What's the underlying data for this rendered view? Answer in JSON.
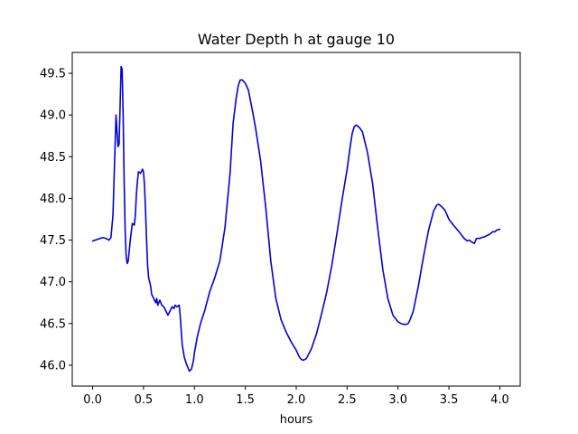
{
  "chart_data": {
    "type": "line",
    "title": "Water Depth h at gauge 10",
    "xlabel": "hours",
    "ylabel": "",
    "xlim": [
      -0.2,
      4.2
    ],
    "ylim": [
      45.75,
      49.75
    ],
    "xticks": [
      0.0,
      0.5,
      1.0,
      1.5,
      2.0,
      2.5,
      3.0,
      3.5,
      4.0
    ],
    "xtick_labels": [
      "0.0",
      "0.5",
      "1.0",
      "1.5",
      "2.0",
      "2.5",
      "3.0",
      "3.5",
      "4.0"
    ],
    "yticks": [
      46.0,
      46.5,
      47.0,
      47.5,
      48.0,
      48.5,
      49.0,
      49.5
    ],
    "ytick_labels": [
      "46.0",
      "46.5",
      "47.0",
      "47.5",
      "48.0",
      "48.5",
      "49.0",
      "49.5"
    ],
    "grid": false,
    "series": [
      {
        "color": "#0000dd",
        "x": [
          0.0,
          0.05,
          0.1,
          0.13,
          0.16,
          0.18,
          0.2,
          0.22,
          0.23,
          0.24,
          0.25,
          0.26,
          0.27,
          0.28,
          0.29,
          0.3,
          0.31,
          0.32,
          0.33,
          0.34,
          0.35,
          0.37,
          0.39,
          0.41,
          0.42,
          0.43,
          0.44,
          0.45,
          0.47,
          0.49,
          0.5,
          0.51,
          0.52,
          0.53,
          0.54,
          0.55,
          0.56,
          0.57,
          0.58,
          0.6,
          0.62,
          0.63,
          0.64,
          0.66,
          0.68,
          0.7,
          0.72,
          0.74,
          0.76,
          0.78,
          0.8,
          0.81,
          0.83,
          0.85,
          0.86,
          0.88,
          0.9,
          0.92,
          0.95,
          0.97,
          0.99,
          1.0,
          1.03,
          1.06,
          1.1,
          1.15,
          1.2,
          1.25,
          1.3,
          1.35,
          1.38,
          1.41,
          1.43,
          1.45,
          1.47,
          1.5,
          1.53,
          1.57,
          1.6,
          1.65,
          1.7,
          1.75,
          1.8,
          1.85,
          1.9,
          1.95,
          2.0,
          2.03,
          2.05,
          2.07,
          2.1,
          2.15,
          2.2,
          2.25,
          2.3,
          2.35,
          2.4,
          2.45,
          2.5,
          2.53,
          2.55,
          2.57,
          2.59,
          2.62,
          2.65,
          2.7,
          2.75,
          2.8,
          2.85,
          2.9,
          2.95,
          3.0,
          3.03,
          3.05,
          3.08,
          3.1,
          3.12,
          3.15,
          3.2,
          3.25,
          3.3,
          3.35,
          3.38,
          3.4,
          3.43,
          3.46,
          3.5,
          3.55,
          3.6,
          3.65,
          3.68,
          3.7,
          3.72,
          3.75,
          3.77,
          3.8,
          3.82,
          3.85,
          3.9,
          3.93,
          3.95,
          3.97,
          4.0
        ],
        "y": [
          47.49,
          47.51,
          47.53,
          47.52,
          47.5,
          47.53,
          47.8,
          48.6,
          49.0,
          48.8,
          48.62,
          48.65,
          49.1,
          49.58,
          49.55,
          49.0,
          48.2,
          47.6,
          47.3,
          47.22,
          47.25,
          47.5,
          47.7,
          47.68,
          47.8,
          48.05,
          48.2,
          48.32,
          48.3,
          48.35,
          48.32,
          48.15,
          47.85,
          47.5,
          47.2,
          47.05,
          47.0,
          46.95,
          46.85,
          46.8,
          46.75,
          46.8,
          46.72,
          46.78,
          46.72,
          46.7,
          46.65,
          46.6,
          46.65,
          46.7,
          46.68,
          46.72,
          46.7,
          46.72,
          46.6,
          46.25,
          46.1,
          46.02,
          45.93,
          45.95,
          46.05,
          46.15,
          46.35,
          46.5,
          46.65,
          46.88,
          47.05,
          47.25,
          47.65,
          48.3,
          48.9,
          49.2,
          49.35,
          49.42,
          49.42,
          49.38,
          49.3,
          49.05,
          48.85,
          48.45,
          47.9,
          47.25,
          46.8,
          46.55,
          46.4,
          46.28,
          46.18,
          46.1,
          46.07,
          46.06,
          46.08,
          46.2,
          46.38,
          46.62,
          46.88,
          47.2,
          47.58,
          47.98,
          48.35,
          48.62,
          48.78,
          48.86,
          48.88,
          48.85,
          48.8,
          48.55,
          48.18,
          47.65,
          47.15,
          46.8,
          46.6,
          46.52,
          46.5,
          46.49,
          46.49,
          46.5,
          46.55,
          46.65,
          46.95,
          47.3,
          47.62,
          47.85,
          47.92,
          47.93,
          47.9,
          47.86,
          47.75,
          47.67,
          47.6,
          47.52,
          47.49,
          47.5,
          47.48,
          47.46,
          47.52,
          47.52,
          47.53,
          47.54,
          47.57,
          47.6,
          47.6,
          47.62,
          47.63
        ]
      }
    ]
  }
}
